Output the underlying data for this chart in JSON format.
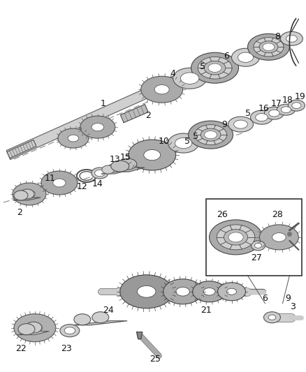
{
  "bg_color": "#ffffff",
  "lc": "#555555",
  "gc": "#aaaaaa",
  "ge": "#444444",
  "dc": "#888888",
  "figsize": [
    4.38,
    5.33
  ],
  "dpi": 100,
  "xlim": [
    0,
    438
  ],
  "ylim": [
    0,
    533
  ]
}
